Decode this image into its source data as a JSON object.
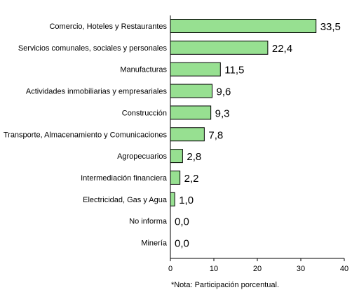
{
  "chart_data": {
    "type": "bar",
    "orientation": "horizontal",
    "categories": [
      "Comercio, Hoteles y Restaurantes",
      "Servicios comunales, sociales y personales",
      "Manufacturas",
      "Actividades inmobiliarias y empresariales",
      "Construcción",
      "Transporte, Almacenamiento y Comunicaciones",
      "Agropecuarios",
      "Intermediación financiera",
      "Electricidad, Gas y Agua",
      "No informa",
      "Minería"
    ],
    "values": [
      33.5,
      22.4,
      11.5,
      9.6,
      9.3,
      7.8,
      2.8,
      2.2,
      1.0,
      0.0,
      0.0
    ],
    "value_labels": [
      "33,5",
      "22,4",
      "11,5",
      "9,6",
      "9,3",
      "7,8",
      "2,8",
      "2,2",
      "1,0",
      "0,0",
      "0,0"
    ],
    "xlim": [
      0,
      40
    ],
    "xticks": [
      "0",
      "10",
      "20",
      "30",
      "40"
    ],
    "title": "",
    "xlabel": "",
    "ylabel": "",
    "note": "*Nota: Participación porcentual.",
    "grid": false,
    "legend": "none",
    "colors": {
      "bar_fill": "#97e091",
      "bar_stroke": "#000000",
      "axis": "#000000"
    }
  }
}
